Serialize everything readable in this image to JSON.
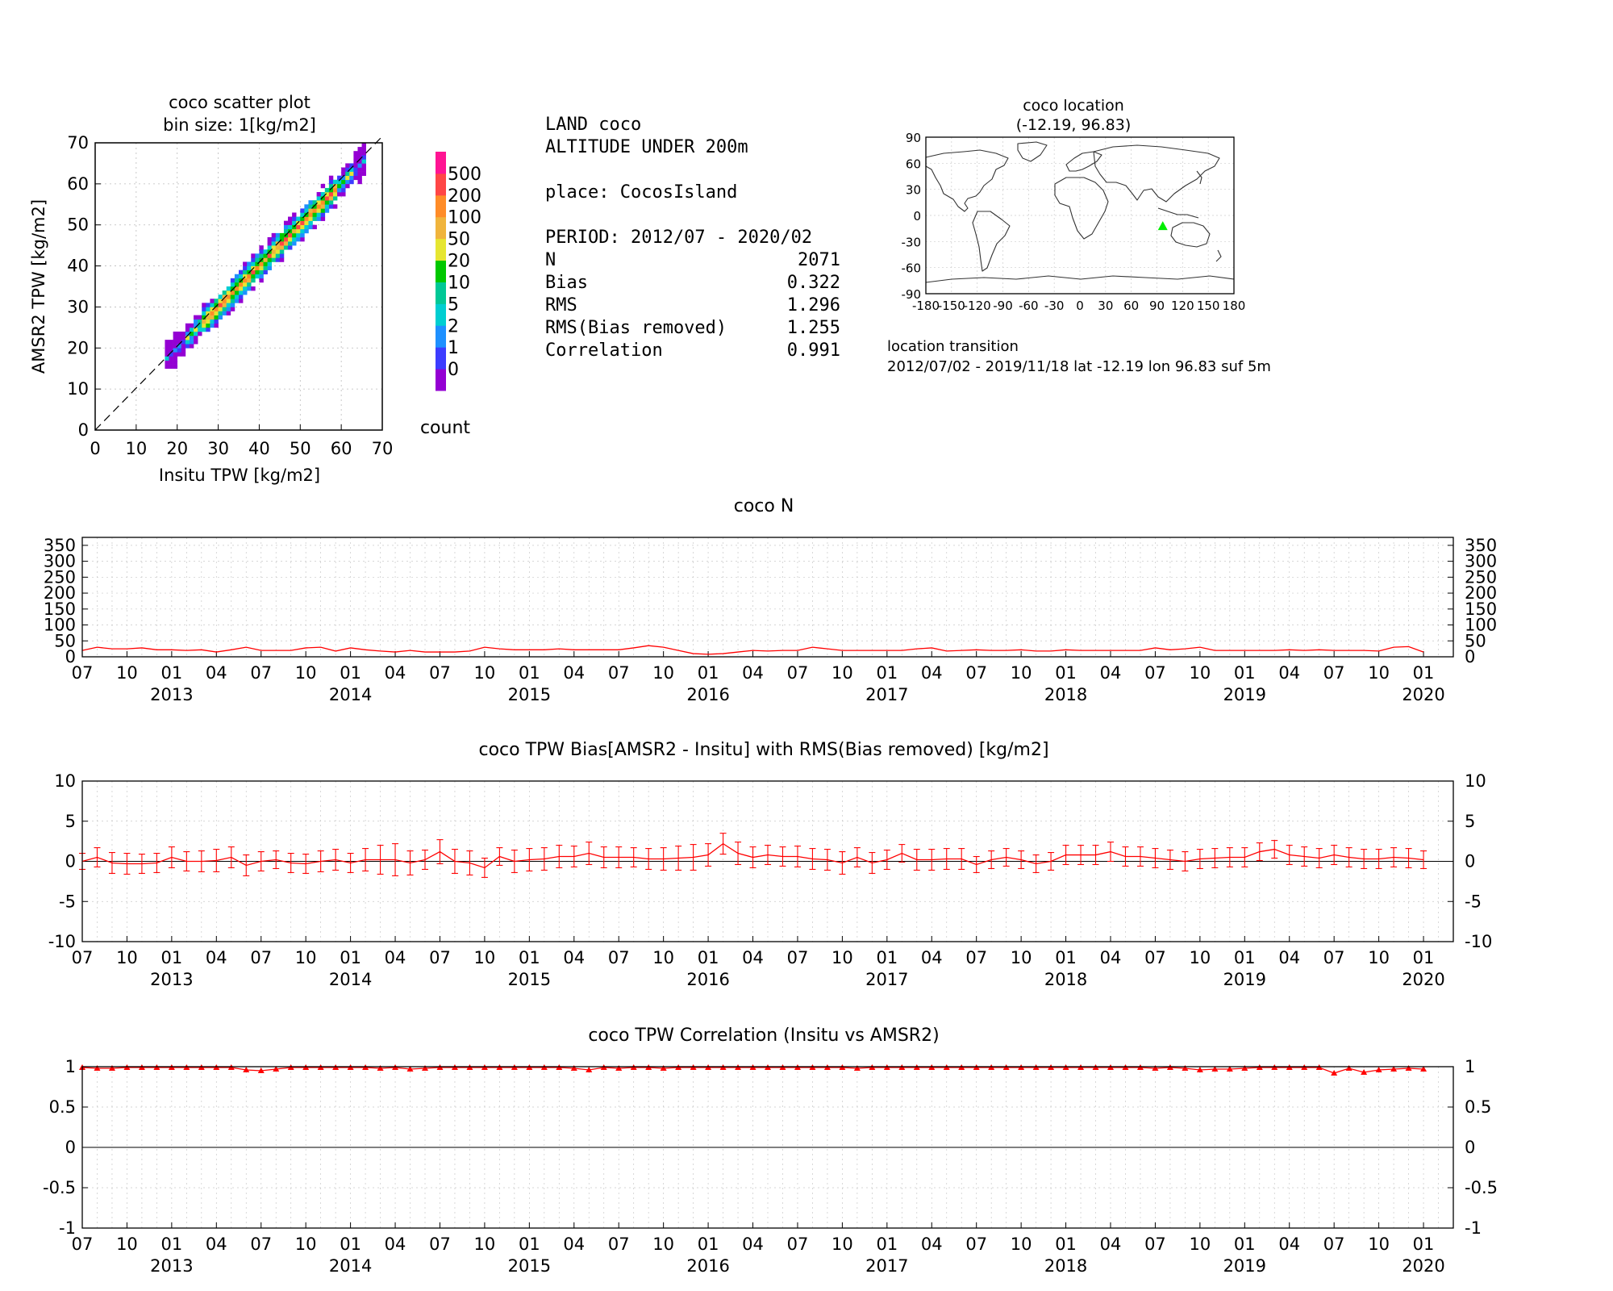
{
  "scatter": {
    "title": "coco scatter plot",
    "subtitle": "bin size: 1[kg/m2]",
    "xlabel": "Insitu TPW [kg/m2]",
    "ylabel": "AMSR2 TPW [kg/m2]",
    "colorbar_label": "count",
    "colorbar_ticks": [
      "500",
      "200",
      "100",
      "50",
      "20",
      "10",
      "5",
      "2",
      "1",
      "0"
    ],
    "colors": {
      "bins": [
        "#9400d3",
        "#3c3cff",
        "#1e90ff",
        "#00ced1",
        "#00c896",
        "#00c800",
        "#e6e632",
        "#f0b43c",
        "#ff8c28",
        "#ff4646",
        "#ff1493"
      ]
    }
  },
  "info": {
    "line1": "LAND coco",
    "line2": "ALTITUDE UNDER 200m",
    "place": "place: CocosIsland",
    "period": "PERIOD: 2012/07 - 2020/02",
    "stats": [
      {
        "label": "N",
        "value": "2071"
      },
      {
        "label": "Bias",
        "value": "0.322"
      },
      {
        "label": "RMS",
        "value": "1.296"
      },
      {
        "label": "RMS(Bias removed)",
        "value": "1.255"
      },
      {
        "label": "Correlation",
        "value": "0.991"
      }
    ]
  },
  "map": {
    "title": "coco location",
    "subtitle": "(-12.19, 96.83)",
    "transition_title": "location transition",
    "transition_text": "2012/07/02 - 2019/11/18 lat -12.19 lon 96.83 suf 5m",
    "marker": {
      "lon": 96.83,
      "lat": -12.19,
      "color": "#00ee00"
    },
    "xticks": [
      "-180",
      "-150",
      "-120",
      "-90",
      "-60",
      "-30",
      "0",
      "30",
      "60",
      "90",
      "120",
      "150",
      "180"
    ],
    "yticks": [
      "90",
      "60",
      "30",
      "0",
      "-30",
      "-60",
      "-90"
    ]
  },
  "timeaxis": {
    "month_labels": [
      "07",
      "10",
      "01",
      "04",
      "07",
      "10",
      "01",
      "04",
      "07",
      "10",
      "01",
      "04",
      "07",
      "10",
      "01",
      "04",
      "07",
      "10",
      "01",
      "04",
      "07",
      "10",
      "01",
      "04",
      "07",
      "10",
      "01",
      "04",
      "07",
      "10",
      "01"
    ],
    "year_labels": [
      "2013",
      "2014",
      "2015",
      "2016",
      "2017",
      "2018",
      "2019",
      "2020"
    ]
  },
  "chart_data": [
    {
      "type": "heatmap",
      "title": "coco scatter plot",
      "subtitle": "bin size: 1[kg/m2]",
      "xlabel": "Insitu TPW [kg/m2]",
      "ylabel": "AMSR2 TPW [kg/m2]",
      "xlim": [
        0,
        70
      ],
      "ylim": [
        0,
        70
      ],
      "xticks": [
        0,
        10,
        20,
        30,
        40,
        50,
        60,
        70
      ],
      "yticks": [
        0,
        10,
        20,
        30,
        40,
        50,
        60,
        70
      ],
      "x_range_of_points": [
        17,
        65
      ],
      "one_to_one_line": true,
      "colorbar_levels": [
        0,
        1,
        2,
        5,
        10,
        20,
        50,
        100,
        200,
        500
      ],
      "colorbar_label": "count"
    },
    {
      "type": "line",
      "title": "coco N",
      "ylim": [
        0,
        375
      ],
      "yticks": [
        0,
        50,
        100,
        150,
        200,
        250,
        300,
        350
      ],
      "start_month": "2012-07",
      "series": [
        {
          "color": "#ff0000",
          "values": [
            20,
            30,
            25,
            25,
            28,
            22,
            22,
            20,
            22,
            15,
            22,
            30,
            20,
            20,
            20,
            28,
            30,
            18,
            28,
            22,
            18,
            15,
            20,
            15,
            15,
            15,
            18,
            30,
            25,
            22,
            22,
            22,
            25,
            22,
            22,
            22,
            22,
            28,
            35,
            30,
            20,
            10,
            8,
            10,
            15,
            20,
            18,
            20,
            20,
            30,
            25,
            20,
            20,
            20,
            20,
            20,
            25,
            28,
            18,
            20,
            22,
            20,
            20,
            22,
            18,
            18,
            22,
            20,
            20,
            20,
            20,
            20,
            28,
            22,
            25,
            30,
            20,
            20,
            20,
            20,
            20,
            22,
            20,
            22,
            20,
            20,
            20,
            18,
            30,
            32,
            15
          ]
        }
      ]
    },
    {
      "type": "line",
      "title": "coco TPW Bias[AMSR2 - Insitu] with RMS(Bias removed) [kg/m2]",
      "ylim": [
        -10,
        10
      ],
      "yticks": [
        -10,
        -5,
        0,
        5,
        10
      ],
      "start_month": "2012-07",
      "error_bars": true,
      "series": [
        {
          "color": "#ff0000",
          "values": [
            0.0,
            0.5,
            -0.2,
            -0.3,
            -0.3,
            -0.2,
            0.5,
            0.0,
            0.0,
            0.1,
            0.5,
            -0.5,
            0.0,
            0.2,
            -0.2,
            -0.3,
            0.0,
            0.2,
            -0.2,
            0.2,
            0.2,
            0.2,
            -0.2,
            0.2,
            1.2,
            0.0,
            -0.2,
            -0.8,
            0.6,
            0.0,
            0.2,
            0.3,
            0.6,
            0.6,
            1.0,
            0.5,
            0.5,
            0.5,
            0.3,
            0.3,
            0.4,
            0.5,
            0.8,
            2.2,
            1.0,
            0.5,
            0.8,
            0.6,
            0.6,
            0.3,
            0.2,
            -0.2,
            0.5,
            -0.2,
            0.2,
            1.0,
            0.2,
            0.2,
            0.3,
            0.3,
            -0.4,
            0.2,
            0.5,
            0.2,
            -0.3,
            0.0,
            0.8,
            0.8,
            0.8,
            1.2,
            0.6,
            0.6,
            0.4,
            0.2,
            0.0,
            0.3,
            0.4,
            0.5,
            0.5,
            1.2,
            1.5,
            0.8,
            0.6,
            0.4,
            0.8,
            0.5,
            0.3,
            0.3,
            0.5,
            0.4,
            0.2
          ],
          "error": [
            1.0,
            1.2,
            1.3,
            1.3,
            1.2,
            1.2,
            1.3,
            1.2,
            1.3,
            1.4,
            1.3,
            1.3,
            1.2,
            1.1,
            1.2,
            1.2,
            1.3,
            1.3,
            1.2,
            1.4,
            1.8,
            2.0,
            1.5,
            1.2,
            1.5,
            1.5,
            1.5,
            1.2,
            1.1,
            1.4,
            1.4,
            1.4,
            1.4,
            1.3,
            1.4,
            1.3,
            1.3,
            1.2,
            1.3,
            1.4,
            1.5,
            1.6,
            1.4,
            1.3,
            1.4,
            1.3,
            1.2,
            1.2,
            1.3,
            1.3,
            1.3,
            1.4,
            1.2,
            1.3,
            1.2,
            1.1,
            1.3,
            1.3,
            1.3,
            1.3,
            1.0,
            1.1,
            1.1,
            1.1,
            1.1,
            1.1,
            1.2,
            1.2,
            1.2,
            1.2,
            1.2,
            1.2,
            1.2,
            1.2,
            1.2,
            1.2,
            1.2,
            1.2,
            1.2,
            1.1,
            1.1,
            1.2,
            1.2,
            1.2,
            1.2,
            1.2,
            1.2,
            1.2,
            1.2,
            1.2,
            1.1
          ]
        }
      ]
    },
    {
      "type": "line",
      "title": "coco TPW Correlation (Insitu vs AMSR2)",
      "ylim": [
        -1,
        1
      ],
      "yticks": [
        -1,
        -0.5,
        0,
        0.5,
        1
      ],
      "start_month": "2012-07",
      "series": [
        {
          "color": "#ff0000",
          "values": [
            0.99,
            0.98,
            0.98,
            0.99,
            0.99,
            0.99,
            0.99,
            0.99,
            0.99,
            0.99,
            0.99,
            0.96,
            0.95,
            0.97,
            0.99,
            0.99,
            0.99,
            0.99,
            0.99,
            0.99,
            0.98,
            0.99,
            0.97,
            0.98,
            0.99,
            0.99,
            0.99,
            0.99,
            0.99,
            0.99,
            0.99,
            0.99,
            0.99,
            0.98,
            0.96,
            0.99,
            0.98,
            0.99,
            0.99,
            0.98,
            0.99,
            0.99,
            0.99,
            0.99,
            0.99,
            0.99,
            0.99,
            0.99,
            0.99,
            0.99,
            0.99,
            0.99,
            0.98,
            0.99,
            0.99,
            0.99,
            0.99,
            0.99,
            0.99,
            0.99,
            0.99,
            0.99,
            0.99,
            0.99,
            0.99,
            0.99,
            0.99,
            0.99,
            0.99,
            0.99,
            0.99,
            0.99,
            0.98,
            0.99,
            0.98,
            0.96,
            0.97,
            0.97,
            0.98,
            0.99,
            0.99,
            0.99,
            0.99,
            0.99,
            0.92,
            0.98,
            0.93,
            0.96,
            0.97,
            0.98,
            0.97
          ]
        }
      ]
    }
  ]
}
